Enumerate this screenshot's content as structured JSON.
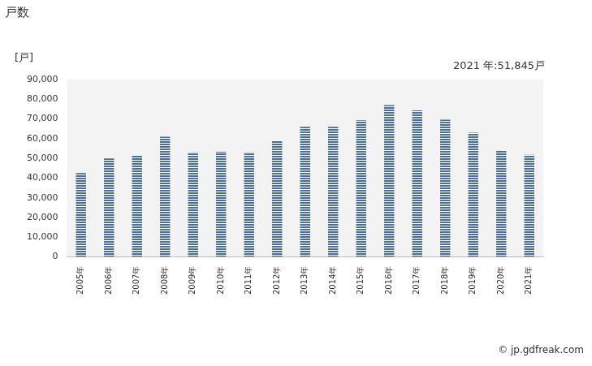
{
  "chart_data": {
    "type": "bar",
    "title": "戸数",
    "unit_label": "[戸]",
    "annotation": "2021 年:51,845戸",
    "source": "© jp.gdfreak.com",
    "categories": [
      "2005年",
      "2006年",
      "2007年",
      "2008年",
      "2009年",
      "2010年",
      "2011年",
      "2012年",
      "2013年",
      "2014年",
      "2015年",
      "2016年",
      "2017年",
      "2018年",
      "2019年",
      "2020年",
      "2021年"
    ],
    "values": [
      42500,
      50000,
      51500,
      61000,
      53000,
      53300,
      53000,
      59000,
      66000,
      66000,
      69300,
      77000,
      74300,
      69600,
      63000,
      53800,
      51845
    ],
    "color": "#4a6e98",
    "ylim": [
      0,
      90000
    ],
    "yticks": [
      0,
      {
        "value": 10000,
        "label": "10,000"
      },
      {
        "value": 20000,
        "label": "20,000"
      },
      {
        "value": 30000,
        "label": "30,000"
      },
      {
        "value": 40000,
        "label": "40,000"
      },
      {
        "value": 50000,
        "label": "50,000"
      },
      {
        "value": 60000,
        "label": "60,000"
      },
      {
        "value": 70000,
        "label": "70,000"
      },
      {
        "value": 80000,
        "label": "80,000"
      },
      {
        "value": 90000,
        "label": "90,000"
      }
    ],
    "grid": false
  }
}
